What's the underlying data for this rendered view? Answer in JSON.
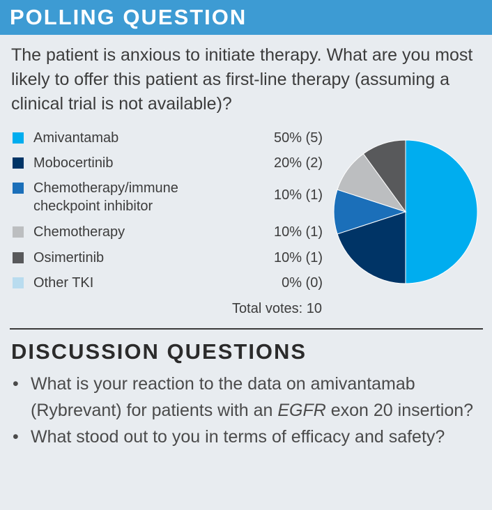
{
  "header": {
    "title": "POLLING QUESTION"
  },
  "question": "The patient is anxious to initiate therapy. What are you most likely to offer this patient as first-line therapy (assuming a clinical trial is not available)?",
  "colors": {
    "Amivantamab": "#00adef",
    "Mobocertinib": "#003466",
    "Chemotherapy/immune checkpoint inhibitor": "#1b6fb9",
    "Chemotherapy": "#bcbec0",
    "Osimertinib": "#58595b",
    "Other TKI": "#b9dcef"
  },
  "total_votes": "Total votes: 10",
  "chart_data": {
    "type": "pie",
    "title": "",
    "categories": [
      "Amivantamab",
      "Mobocertinib",
      "Chemotherapy/immune checkpoint inhibitor",
      "Chemotherapy",
      "Osimertinib",
      "Other TKI"
    ],
    "values": [
      50,
      20,
      10,
      10,
      10,
      0
    ],
    "votes": [
      5,
      2,
      1,
      1,
      1,
      0
    ],
    "value_labels": [
      "50% (5)",
      "20% (2)",
      "10% (1)",
      "10% (1)",
      "10% (1)",
      "0% (0)"
    ],
    "legend_placement": "left"
  },
  "discussion": {
    "title": "DISCUSSION QUESTIONS",
    "bullet_char": "•",
    "items": [
      {
        "before": "What is your reaction to the data on amivantamab (Rybrevant) for patients with an ",
        "italic": "EGFR",
        "after": " exon 20 insertion?"
      },
      {
        "before": "What stood out to you in terms of efficacy and safety?",
        "italic": "",
        "after": ""
      }
    ]
  }
}
